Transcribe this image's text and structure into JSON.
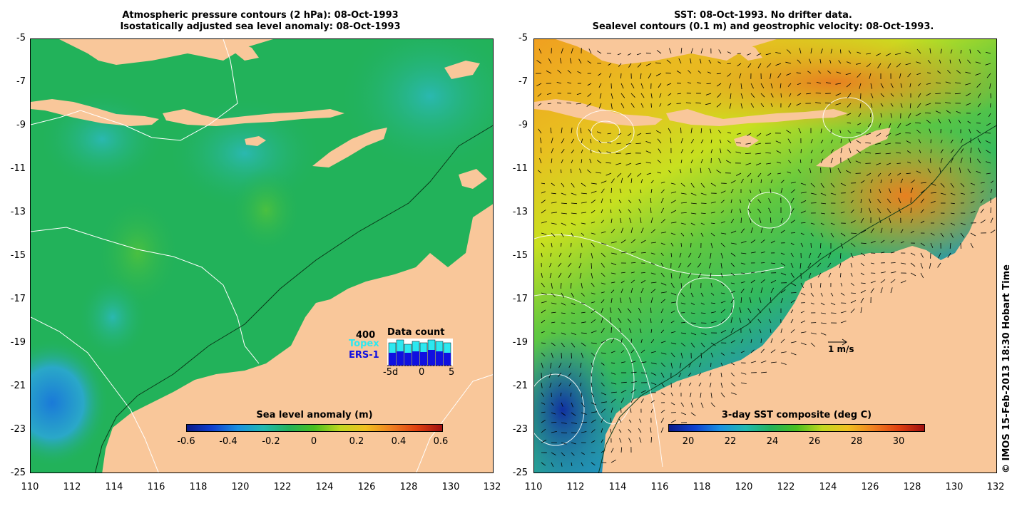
{
  "left_panel": {
    "title_line1": "Atmospheric pressure contours (2 hPa): 08-Oct-1993",
    "title_line2": "Isostatically adjusted sea level anomaly: 08-Oct-1993",
    "colorbar_title": "Sea level anomaly (m)",
    "colorbar_labels": [
      "-0.6",
      "-0.4",
      "-0.2",
      "0",
      "0.2",
      "0.4",
      "0.6"
    ],
    "data_count": {
      "title": "Data count",
      "max_label": "400",
      "series": [
        "Topex",
        "ERS-1"
      ],
      "x_labels": [
        "-5d",
        "0",
        "5"
      ],
      "topex_color": "#2de8f0",
      "ers_color": "#1010e0"
    }
  },
  "right_panel": {
    "title_line1": "SST: 08-Oct-1993. No drifter data.",
    "title_line2": "Sealevel contours (0.1 m) and geostrophic velocity: 08-Oct-1993.",
    "colorbar_title": "3-day SST composite (deg C)",
    "colorbar_labels": [
      "20",
      "22",
      "24",
      "26",
      "28",
      "30"
    ],
    "velocity_scale_label": "1 m/s"
  },
  "y_ticks": [
    "-5",
    "-7",
    "-9",
    "-11",
    "-13",
    "-15",
    "-17",
    "-19",
    "-21",
    "-23",
    "-25"
  ],
  "x_ticks": [
    "110",
    "112",
    "114",
    "116",
    "118",
    "120",
    "122",
    "124",
    "126",
    "128",
    "130",
    "132"
  ],
  "copyright": "© IMOS 15-Feb-2013 18:30 Hobart Time",
  "colors": {
    "land": "#f9c79a",
    "sla_ocean": "#22b25a",
    "sst_warm": "#f0a020",
    "sst_cool": "#1e5ad0"
  }
}
